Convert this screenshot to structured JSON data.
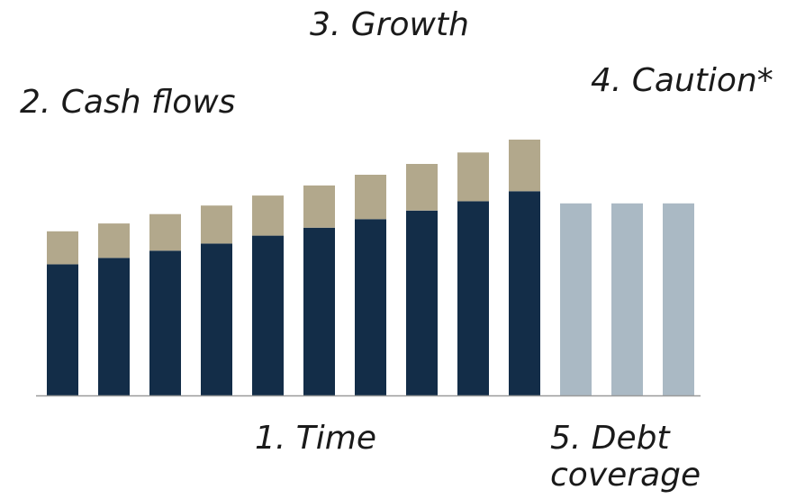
{
  "annotations": {
    "time": "1. Time",
    "cash_flows": "2. Cash flows",
    "growth": "3. Growth",
    "caution": "4. Caution*",
    "debt_coverage": "5. Debt coverage"
  },
  "colors": {
    "base": "#132d48",
    "top": "#b2a88c",
    "caution": "#aab9c4",
    "axis": "#9a9a9a"
  },
  "chart_data": {
    "type": "bar",
    "stacked": true,
    "categories": [
      "",
      "",
      "",
      "",
      "",
      "",
      "",
      "",
      "",
      "",
      "",
      "",
      ""
    ],
    "ylim": [
      0,
      360
    ],
    "series": [
      {
        "role": "base",
        "values": [
          183,
          192,
          202,
          212,
          223,
          234,
          246,
          258,
          271,
          285,
          0,
          0,
          0
        ]
      },
      {
        "role": "top",
        "values": [
          46,
          48,
          51,
          53,
          56,
          59,
          62,
          65,
          68,
          72,
          0,
          0,
          0
        ]
      },
      {
        "role": "caution",
        "values": [
          0,
          0,
          0,
          0,
          0,
          0,
          0,
          0,
          0,
          0,
          268,
          268,
          268
        ]
      }
    ],
    "grid": false,
    "legend": "none"
  }
}
